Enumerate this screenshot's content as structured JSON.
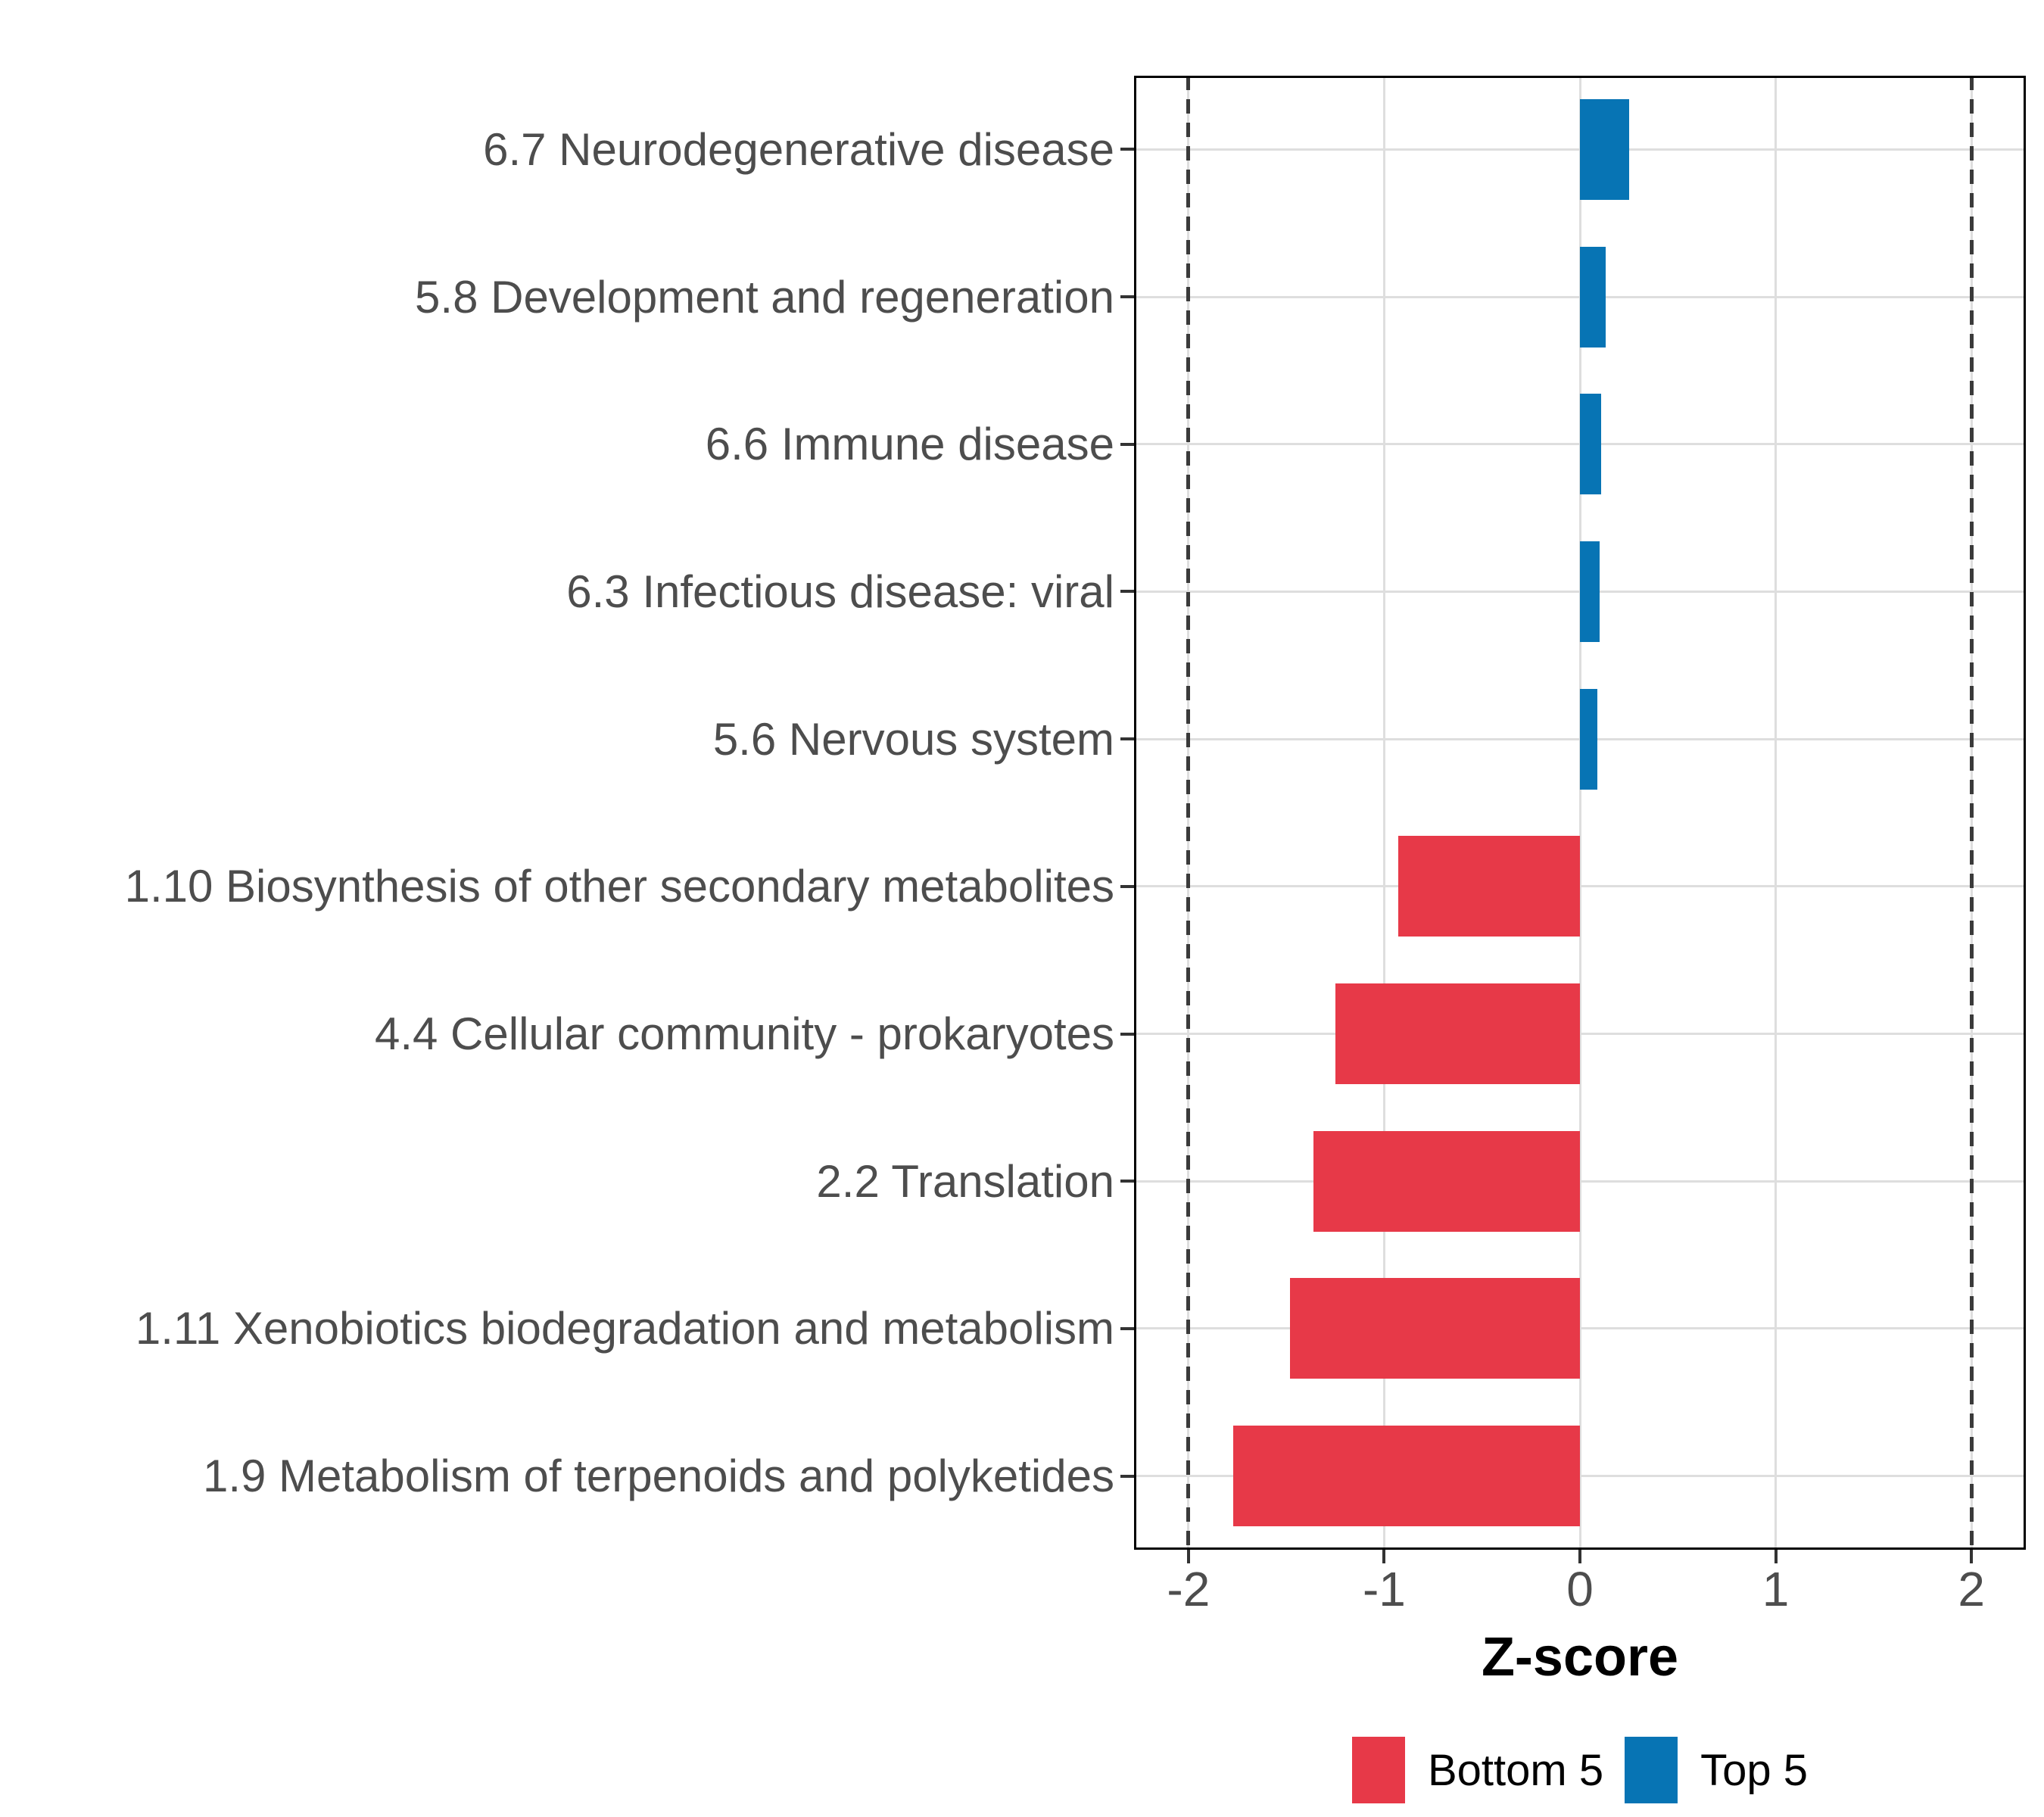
{
  "chart_data": {
    "type": "bar",
    "orientation": "horizontal",
    "title": "",
    "xlabel": "Z-score",
    "categories": [
      "6.7 Neurodegenerative disease",
      "5.8 Development and regeneration",
      "6.6 Immune disease",
      "6.3 Infectious disease: viral",
      "5.6 Nervous system",
      "1.10 Biosynthesis of other secondary metabolites",
      "4.4 Cellular community - prokaryotes",
      "2.2 Translation",
      "1.11 Xenobiotics biodegradation and metabolism",
      "1.9 Metabolism of terpenoids and polyketides"
    ],
    "values": [
      0.25,
      0.13,
      0.11,
      0.1,
      0.09,
      -0.93,
      -1.25,
      -1.36,
      -1.48,
      -1.77
    ],
    "groups": [
      "Top 5",
      "Top 5",
      "Top 5",
      "Top 5",
      "Top 5",
      "Bottom 5",
      "Bottom 5",
      "Bottom 5",
      "Bottom 5",
      "Bottom 5"
    ],
    "series": [
      {
        "name": "Bottom 5",
        "color": "#E73948"
      },
      {
        "name": "Top 5",
        "color": "#0774B4"
      }
    ],
    "xlim": [
      -2.278,
      2.278
    ],
    "xticks": [
      -2,
      -1,
      0,
      1,
      2
    ],
    "xtick_labels": [
      "-2",
      "-1",
      "0",
      "1",
      "2"
    ],
    "reference_lines": [
      -2,
      2
    ],
    "grid": true,
    "legend_position": "bottom"
  },
  "legend": {
    "bottom_label": "Bottom 5",
    "top_label": "Top 5"
  },
  "axis": {
    "x_title": "Z-score"
  },
  "colors": {
    "bottom5": "#E73948",
    "top5": "#0774B4",
    "grid": "#DEDEDE",
    "reference_dash": "#3A3A3A",
    "axis_text": "#4D4D4D",
    "panel_border": "#000000",
    "background": "#FFFFFF"
  }
}
